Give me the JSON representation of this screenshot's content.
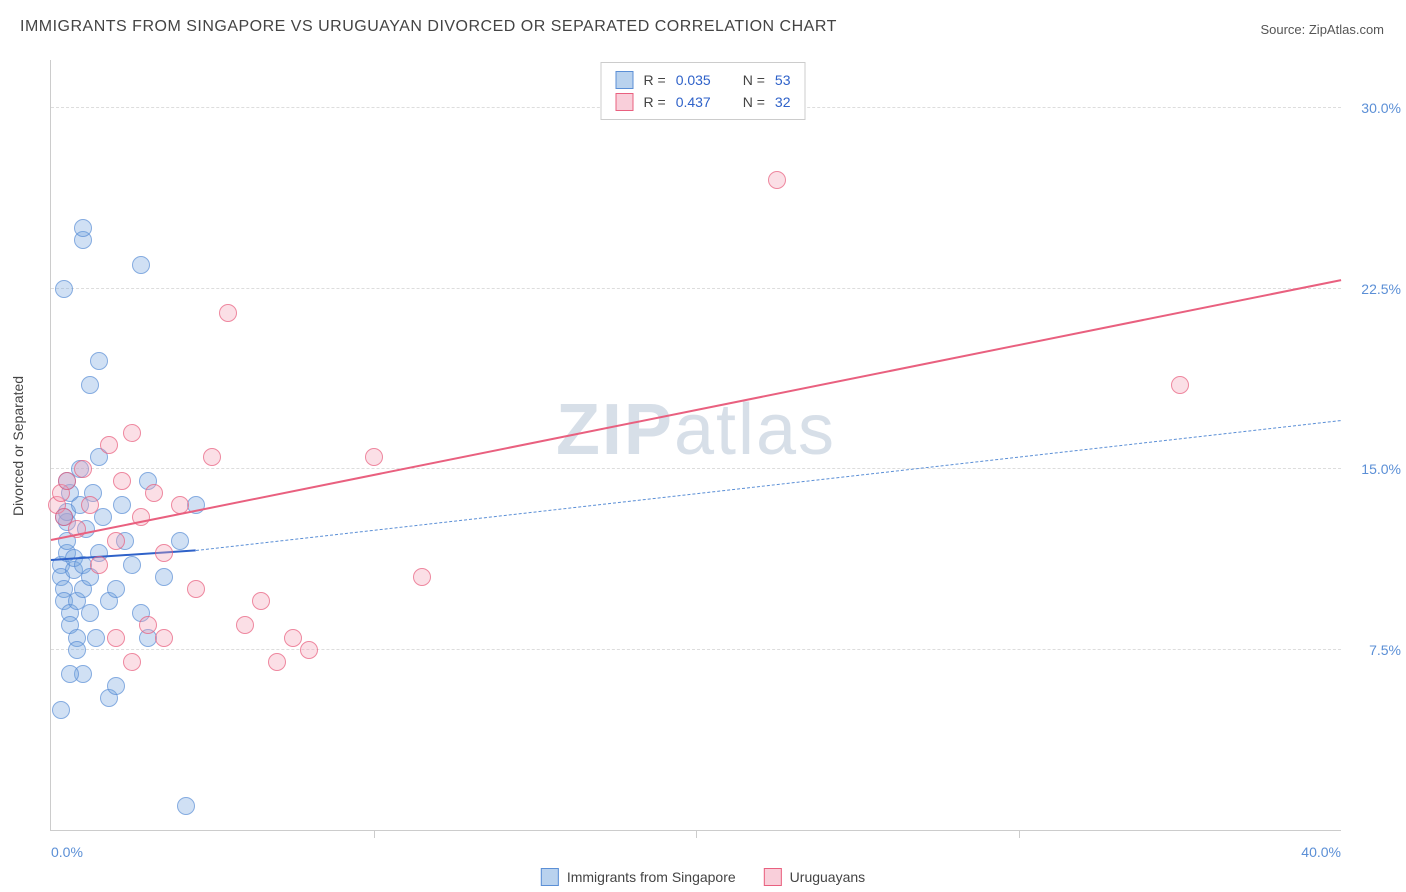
{
  "title": "IMMIGRANTS FROM SINGAPORE VS URUGUAYAN DIVORCED OR SEPARATED CORRELATION CHART",
  "source_label": "Source: ZipAtlas.com",
  "watermark_bold": "ZIP",
  "watermark_light": "atlas",
  "ylabel": "Divorced or Separated",
  "chart": {
    "type": "scatter",
    "xlim": [
      0,
      40
    ],
    "ylim": [
      0,
      32
    ],
    "x_min_label": "0.0%",
    "x_max_label": "40.0%",
    "y_ticks": [
      7.5,
      15.0,
      22.5,
      30.0
    ],
    "y_tick_labels": [
      "7.5%",
      "15.0%",
      "22.5%",
      "30.0%"
    ],
    "x_minor_ticks": [
      10,
      20,
      30
    ],
    "background_color": "#ffffff",
    "grid_color": "#dddddd",
    "axis_color": "#cccccc",
    "tick_label_color": "#5b8fd6",
    "series": [
      {
        "name": "Immigrants from Singapore",
        "class": "blue",
        "marker_color_fill": "rgba(116,165,222,0.45)",
        "marker_color_stroke": "#5b8fd6",
        "marker_size": 16,
        "trend_solid_color": "#2f62c9",
        "trend_dash_color": "#5b8fd6",
        "trend_start": [
          0,
          11.2
        ],
        "trend_solid_end": [
          4.5,
          11.6
        ],
        "trend_dash_end": [
          40,
          17.0
        ],
        "R": "0.035",
        "N": "53",
        "points": [
          [
            0.3,
            11.0
          ],
          [
            0.3,
            10.5
          ],
          [
            0.4,
            10.0
          ],
          [
            0.4,
            9.5
          ],
          [
            0.5,
            11.5
          ],
          [
            0.5,
            12.0
          ],
          [
            0.5,
            12.8
          ],
          [
            0.5,
            13.2
          ],
          [
            0.6,
            14.0
          ],
          [
            0.6,
            9.0
          ],
          [
            0.6,
            8.5
          ],
          [
            0.7,
            10.8
          ],
          [
            0.7,
            11.3
          ],
          [
            0.8,
            9.5
          ],
          [
            0.8,
            8.0
          ],
          [
            0.8,
            7.5
          ],
          [
            0.9,
            13.5
          ],
          [
            0.9,
            15.0
          ],
          [
            1.0,
            10.0
          ],
          [
            1.0,
            11.0
          ],
          [
            1.0,
            6.5
          ],
          [
            1.1,
            12.5
          ],
          [
            1.2,
            9.0
          ],
          [
            1.2,
            10.5
          ],
          [
            1.3,
            14.0
          ],
          [
            1.4,
            8.0
          ],
          [
            1.5,
            11.5
          ],
          [
            1.5,
            15.5
          ],
          [
            1.6,
            13.0
          ],
          [
            1.8,
            9.5
          ],
          [
            1.8,
            5.5
          ],
          [
            2.0,
            10.0
          ],
          [
            2.0,
            6.0
          ],
          [
            2.2,
            13.5
          ],
          [
            2.3,
            12.0
          ],
          [
            2.5,
            11.0
          ],
          [
            2.8,
            9.0
          ],
          [
            2.8,
            23.5
          ],
          [
            3.0,
            14.5
          ],
          [
            3.0,
            8.0
          ],
          [
            3.5,
            10.5
          ],
          [
            4.0,
            12.0
          ],
          [
            4.2,
            1.0
          ],
          [
            4.5,
            13.5
          ],
          [
            1.0,
            24.5
          ],
          [
            0.4,
            22.5
          ],
          [
            1.5,
            19.5
          ],
          [
            1.2,
            18.5
          ],
          [
            0.3,
            5.0
          ],
          [
            0.6,
            6.5
          ],
          [
            0.4,
            13.0
          ],
          [
            0.5,
            14.5
          ],
          [
            1.0,
            25.0
          ]
        ]
      },
      {
        "name": "Uruguayans",
        "class": "pink",
        "marker_color_fill": "rgba(244,160,182,0.45)",
        "marker_color_stroke": "#e9607f",
        "marker_size": 16,
        "trend_solid_color": "#e9607f",
        "trend_start": [
          0,
          12.0
        ],
        "trend_solid_end": [
          40,
          22.8
        ],
        "R": "0.437",
        "N": "32",
        "points": [
          [
            0.2,
            13.5
          ],
          [
            0.3,
            14.0
          ],
          [
            0.4,
            13.0
          ],
          [
            0.5,
            14.5
          ],
          [
            0.8,
            12.5
          ],
          [
            1.0,
            15.0
          ],
          [
            1.2,
            13.5
          ],
          [
            1.5,
            11.0
          ],
          [
            1.8,
            16.0
          ],
          [
            2.0,
            12.0
          ],
          [
            2.2,
            14.5
          ],
          [
            2.5,
            16.5
          ],
          [
            2.8,
            13.0
          ],
          [
            3.0,
            8.5
          ],
          [
            3.2,
            14.0
          ],
          [
            3.5,
            11.5
          ],
          [
            2.0,
            8.0
          ],
          [
            4.0,
            13.5
          ],
          [
            4.5,
            10.0
          ],
          [
            5.0,
            15.5
          ],
          [
            5.5,
            21.5
          ],
          [
            6.0,
            8.5
          ],
          [
            6.5,
            9.5
          ],
          [
            7.0,
            7.0
          ],
          [
            7.5,
            8.0
          ],
          [
            8.0,
            7.5
          ],
          [
            10.0,
            15.5
          ],
          [
            11.5,
            10.5
          ],
          [
            3.5,
            8.0
          ],
          [
            22.5,
            27.0
          ],
          [
            35.0,
            18.5
          ],
          [
            2.5,
            7.0
          ]
        ]
      }
    ]
  },
  "legend_top": {
    "r_label": "R =",
    "n_label": "N ="
  },
  "legend_bottom": {
    "series1_label": "Immigrants from Singapore",
    "series2_label": "Uruguayans"
  }
}
